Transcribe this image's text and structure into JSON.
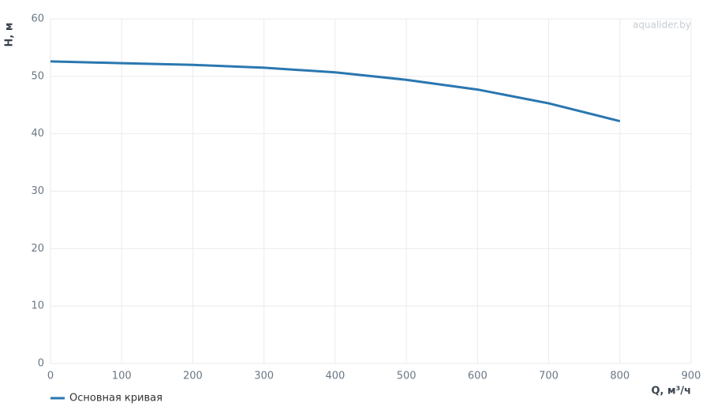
{
  "chart_data": {
    "type": "line",
    "watermark": "aqualider.by",
    "x_label": "Q, м³/ч",
    "y_label": "H, м",
    "x": [
      0,
      100,
      200,
      300,
      400,
      500,
      600,
      700,
      800
    ],
    "series": [
      {
        "name": "Основная кривая",
        "color": "#2a77b0",
        "values": [
          52.6,
          52.3,
          52.0,
          51.5,
          50.7,
          49.4,
          47.7,
          45.3,
          42.2
        ]
      }
    ],
    "xlim": [
      0,
      900
    ],
    "xticks": [
      0,
      100,
      200,
      300,
      400,
      500,
      600,
      700,
      800,
      900
    ],
    "ylim": [
      0,
      60
    ],
    "yticks": [
      0,
      10,
      20,
      30,
      40,
      50,
      60
    ],
    "grid": true
  }
}
